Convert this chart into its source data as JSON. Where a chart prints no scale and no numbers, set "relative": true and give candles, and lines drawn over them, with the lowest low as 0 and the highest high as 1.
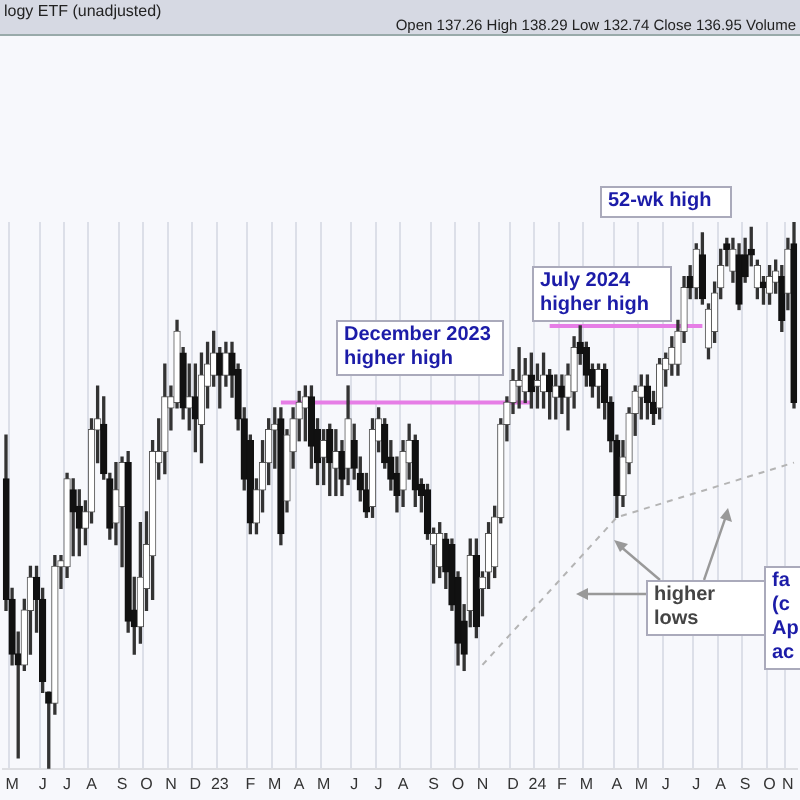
{
  "chart_data": {
    "type": "candlestick",
    "relative": true,
    "title": "logy ETF (unadjusted)",
    "grid": "x",
    "categories": [
      null,
      "M",
      null,
      null,
      null,
      null,
      "J",
      null,
      null,
      null,
      "J",
      null,
      null,
      null,
      "A",
      null,
      null,
      null,
      null,
      "S",
      null,
      null,
      null,
      "O",
      null,
      null,
      null,
      "N",
      null,
      null,
      null,
      "D",
      null,
      null,
      null,
      "23",
      null,
      null,
      null,
      null,
      "F",
      null,
      null,
      null,
      "M",
      null,
      null,
      null,
      "A",
      null,
      null,
      null,
      "M",
      null,
      null,
      null,
      null,
      "J",
      null,
      null,
      null,
      "J",
      null,
      null,
      null,
      "A",
      null,
      null,
      null,
      null,
      "S",
      null,
      null,
      null,
      "O",
      null,
      null,
      null,
      "N",
      null,
      null,
      null,
      null,
      "D",
      null,
      null,
      null,
      "24",
      null,
      null,
      null,
      "F",
      null,
      null,
      null,
      "M",
      null,
      null,
      null,
      null,
      "A",
      null,
      null,
      null,
      "M",
      null,
      null,
      null,
      "J",
      null,
      null,
      null,
      null,
      "J",
      null,
      null,
      null,
      "A",
      null,
      null,
      null,
      "S",
      null,
      null,
      null,
      "O",
      null,
      null,
      "N",
      null
    ],
    "ohlc": [
      [
        0.53,
        0.61,
        0.29,
        0.31
      ],
      [
        0.31,
        0.33,
        0.19,
        0.21
      ],
      [
        0.21,
        0.25,
        0.02,
        0.19
      ],
      [
        0.19,
        0.31,
        0.18,
        0.29
      ],
      [
        0.29,
        0.37,
        0.21,
        0.35
      ],
      [
        0.35,
        0.37,
        0.25,
        0.31
      ],
      [
        0.31,
        0.33,
        0.14,
        0.16
      ],
      [
        0.14,
        0.14,
        0,
        0.12
      ],
      [
        0.12,
        0.39,
        0.1,
        0.37
      ],
      [
        0.37,
        0.39,
        0.33,
        0.38
      ],
      [
        0.37,
        0.54,
        0.35,
        0.53
      ],
      [
        0.51,
        0.53,
        0.39,
        0.47
      ],
      [
        0.48,
        0.51,
        0.39,
        0.44
      ],
      [
        0.44,
        0.49,
        0.41,
        0.47
      ],
      [
        0.47,
        0.64,
        0.45,
        0.62
      ],
      [
        0.62,
        0.7,
        0.56,
        0.64
      ],
      [
        0.63,
        0.68,
        0.53,
        0.54
      ],
      [
        0.53,
        0.54,
        0.42,
        0.44
      ],
      [
        0.45,
        0.56,
        0.41,
        0.51
      ],
      [
        0.48,
        0.57,
        0.37,
        0.56
      ],
      [
        0.56,
        0.58,
        0.25,
        0.27
      ],
      [
        0.29,
        0.35,
        0.21,
        0.26
      ],
      [
        0.26,
        0.45,
        0.23,
        0.35
      ],
      [
        0.33,
        0.47,
        0.29,
        0.41
      ],
      [
        0.39,
        0.6,
        0.31,
        0.58
      ],
      [
        0.56,
        0.64,
        0.53,
        0.58
      ],
      [
        0.58,
        0.74,
        0.54,
        0.68
      ],
      [
        0.66,
        0.7,
        0.62,
        0.68
      ],
      [
        0.67,
        0.82,
        0.66,
        0.8
      ],
      [
        0.76,
        0.77,
        0.64,
        0.66
      ],
      [
        0.66,
        0.74,
        0.62,
        0.68
      ],
      [
        0.68,
        0.74,
        0.58,
        0.64
      ],
      [
        0.63,
        0.76,
        0.56,
        0.72
      ],
      [
        0.7,
        0.78,
        0.66,
        0.74
      ],
      [
        0.72,
        0.8,
        0.7,
        0.76
      ],
      [
        0.76,
        0.77,
        0.66,
        0.72
      ],
      [
        0.72,
        0.78,
        0.7,
        0.76
      ],
      [
        0.76,
        0.78,
        0.68,
        0.72
      ],
      [
        0.73,
        0.74,
        0.62,
        0.64
      ],
      [
        0.64,
        0.66,
        0.51,
        0.53
      ],
      [
        0.6,
        0.61,
        0.43,
        0.45
      ],
      [
        0.45,
        0.53,
        0.43,
        0.51
      ],
      [
        0.51,
        0.6,
        0.47,
        0.56
      ],
      [
        0.56,
        0.64,
        0.52,
        0.62
      ],
      [
        0.62,
        0.66,
        0.55,
        0.63
      ],
      [
        0.64,
        0.66,
        0.41,
        0.43
      ],
      [
        0.49,
        0.62,
        0.47,
        0.61
      ],
      [
        0.58,
        0.66,
        0.55,
        0.64
      ],
      [
        0.64,
        0.69,
        0.6,
        0.67
      ],
      [
        0.66,
        0.7,
        0.6,
        0.68
      ],
      [
        0.68,
        0.7,
        0.55,
        0.59
      ],
      [
        0.62,
        0.64,
        0.52,
        0.56
      ],
      [
        0.57,
        0.62,
        0.52,
        0.6
      ],
      [
        0.62,
        0.63,
        0.5,
        0.56
      ],
      [
        0.55,
        0.62,
        0.5,
        0.58
      ],
      [
        0.58,
        0.6,
        0.5,
        0.53
      ],
      [
        0.55,
        0.7,
        0.52,
        0.64
      ],
      [
        0.6,
        0.63,
        0.53,
        0.55
      ],
      [
        0.54,
        0.57,
        0.49,
        0.51
      ],
      [
        0.51,
        0.54,
        0.46,
        0.47
      ],
      [
        0.48,
        0.64,
        0.46,
        0.62
      ],
      [
        0.6,
        0.66,
        0.58,
        0.64
      ],
      [
        0.63,
        0.64,
        0.55,
        0.56
      ],
      [
        0.57,
        0.6,
        0.51,
        0.53
      ],
      [
        0.54,
        0.57,
        0.47,
        0.5
      ],
      [
        0.51,
        0.6,
        0.48,
        0.58
      ],
      [
        0.56,
        0.63,
        0.53,
        0.6
      ],
      [
        0.6,
        0.61,
        0.48,
        0.51
      ],
      [
        0.52,
        0.53,
        0.47,
        0.5
      ],
      [
        0.51,
        0.52,
        0.42,
        0.43
      ],
      [
        0.41,
        0.44,
        0.34,
        0.43
      ],
      [
        0.37,
        0.45,
        0.35,
        0.43
      ],
      [
        0.42,
        0.43,
        0.33,
        0.36
      ],
      [
        0.41,
        0.42,
        0.29,
        0.3
      ],
      [
        0.35,
        0.36,
        0.19,
        0.23
      ],
      [
        0.27,
        0.3,
        0.18,
        0.21
      ],
      [
        0.29,
        0.42,
        0.26,
        0.39
      ],
      [
        0.39,
        0.42,
        0.24,
        0.26
      ],
      [
        0.33,
        0.36,
        0.28,
        0.35
      ],
      [
        0.36,
        0.45,
        0.33,
        0.43
      ],
      [
        0.37,
        0.48,
        0.35,
        0.46
      ],
      [
        0.46,
        0.64,
        0.45,
        0.63
      ],
      [
        0.63,
        0.68,
        0.6,
        0.67
      ],
      [
        0.67,
        0.73,
        0.65,
        0.71
      ],
      [
        0.7,
        0.77,
        0.66,
        0.71
      ],
      [
        0.69,
        0.75,
        0.67,
        0.72
      ],
      [
        0.72,
        0.76,
        0.66,
        0.69
      ],
      [
        0.7,
        0.74,
        0.66,
        0.71
      ],
      [
        0.69,
        0.76,
        0.66,
        0.72
      ],
      [
        0.72,
        0.73,
        0.64,
        0.69
      ],
      [
        0.68,
        0.72,
        0.64,
        0.7
      ],
      [
        0.7,
        0.72,
        0.65,
        0.68
      ],
      [
        0.68,
        0.74,
        0.62,
        0.72
      ],
      [
        0.69,
        0.79,
        0.66,
        0.77
      ],
      [
        0.78,
        0.81,
        0.74,
        0.76
      ],
      [
        0.77,
        0.78,
        0.7,
        0.72
      ],
      [
        0.73,
        0.74,
        0.68,
        0.7
      ],
      [
        0.7,
        0.74,
        0.66,
        0.73
      ],
      [
        0.73,
        0.74,
        0.64,
        0.67
      ],
      [
        0.67,
        0.68,
        0.58,
        0.6
      ],
      [
        0.6,
        0.61,
        0.46,
        0.5
      ],
      [
        0.5,
        0.6,
        0.48,
        0.57
      ],
      [
        0.56,
        0.66,
        0.54,
        0.65
      ],
      [
        0.65,
        0.7,
        0.61,
        0.69
      ],
      [
        0.68,
        0.72,
        0.64,
        0.7
      ],
      [
        0.7,
        0.72,
        0.64,
        0.67
      ],
      [
        0.67,
        0.69,
        0.63,
        0.65
      ],
      [
        0.66,
        0.75,
        0.64,
        0.74
      ],
      [
        0.73,
        0.76,
        0.7,
        0.75
      ],
      [
        0.74,
        0.79,
        0.72,
        0.77
      ],
      [
        0.74,
        0.82,
        0.72,
        0.8
      ],
      [
        0.8,
        0.9,
        0.78,
        0.88
      ],
      [
        0.9,
        0.92,
        0.86,
        0.88
      ],
      [
        0.88,
        0.96,
        0.86,
        0.95
      ],
      [
        0.94,
        0.98,
        0.85,
        0.86
      ],
      [
        0.77,
        0.85,
        0.75,
        0.84
      ],
      [
        0.8,
        0.89,
        0.78,
        0.87
      ],
      [
        0.88,
        0.95,
        0.86,
        0.92
      ],
      [
        0.96,
        0.97,
        0.92,
        0.95
      ],
      [
        0.91,
        0.97,
        0.89,
        0.95
      ],
      [
        0.94,
        0.96,
        0.84,
        0.85
      ],
      [
        0.94,
        0.97,
        0.89,
        0.9
      ],
      [
        0.95,
        0.99,
        0.92,
        0.94
      ],
      [
        0.88,
        0.93,
        0.86,
        0.92
      ],
      [
        0.89,
        0.9,
        0.85,
        0.88
      ],
      [
        0.87,
        0.92,
        0.85,
        0.9
      ],
      [
        0.89,
        0.93,
        0.87,
        0.91
      ],
      [
        0.9,
        0.92,
        0.8,
        0.82
      ],
      [
        0.87,
        0.97,
        0.84,
        0.95
      ],
      [
        0.96,
        1,
        0.66,
        0.67
      ]
    ],
    "series": [
      {
        "type": "line",
        "color": "#e67ee6",
        "line_style": "solid",
        "values": [
          null,
          null,
          null,
          null,
          null,
          null,
          null,
          null,
          null,
          null,
          null,
          null,
          null,
          null,
          null,
          null,
          null,
          null,
          null,
          null,
          null,
          null,
          null,
          null,
          null,
          null,
          null,
          null,
          null,
          null,
          null,
          null,
          null,
          null,
          null,
          null,
          null,
          null,
          null,
          null,
          null,
          null,
          null,
          null,
          null,
          0.67,
          null,
          null,
          null,
          null,
          null,
          null,
          null,
          null,
          null,
          null,
          null,
          null,
          null,
          null,
          null,
          null,
          null,
          null,
          null,
          null,
          null,
          null,
          null,
          null,
          null,
          null,
          null,
          null,
          null,
          null,
          null,
          null,
          null,
          null,
          null,
          null,
          null,
          null,
          null,
          null,
          0.67,
          null,
          null,
          null,
          null,
          null,
          null,
          null,
          null,
          null,
          null,
          null,
          null,
          null,
          null,
          null,
          null,
          null,
          null,
          null,
          null,
          null,
          null,
          null,
          null,
          null,
          null,
          null,
          null,
          null,
          null,
          null,
          null,
          null,
          null,
          null,
          null,
          null,
          null,
          null,
          null,
          null,
          null,
          null
        ]
      },
      {
        "type": "line",
        "color": "#e67ee6",
        "line_style": "solid",
        "values": [
          null,
          null,
          null,
          null,
          null,
          null,
          null,
          null,
          null,
          null,
          null,
          null,
          null,
          null,
          null,
          null,
          null,
          null,
          null,
          null,
          null,
          null,
          null,
          null,
          null,
          null,
          null,
          null,
          null,
          null,
          null,
          null,
          null,
          null,
          null,
          null,
          null,
          null,
          null,
          null,
          null,
          null,
          null,
          null,
          null,
          null,
          null,
          null,
          null,
          null,
          null,
          null,
          null,
          null,
          null,
          null,
          null,
          null,
          null,
          null,
          null,
          null,
          null,
          null,
          null,
          null,
          null,
          null,
          null,
          null,
          null,
          null,
          null,
          null,
          null,
          null,
          null,
          null,
          null,
          null,
          null,
          null,
          null,
          null,
          null,
          null,
          null,
          null,
          null,
          0.81,
          null,
          null,
          null,
          null,
          null,
          null,
          null,
          null,
          null,
          null,
          null,
          null,
          null,
          null,
          null,
          null,
          null,
          null,
          null,
          null,
          null,
          null,
          null,
          null,
          0.81,
          null,
          null,
          null,
          null,
          null,
          null,
          null,
          null,
          null,
          null,
          null,
          null,
          null,
          null,
          null
        ]
      },
      {
        "type": "line",
        "color": "#b4b4b4",
        "line_style": "dashed",
        "values": [
          null,
          null,
          null,
          null,
          null,
          null,
          null,
          null,
          null,
          null,
          null,
          null,
          null,
          null,
          null,
          null,
          null,
          null,
          null,
          null,
          null,
          null,
          null,
          null,
          null,
          null,
          null,
          null,
          null,
          null,
          null,
          null,
          null,
          null,
          null,
          null,
          null,
          null,
          null,
          null,
          null,
          null,
          null,
          null,
          null,
          null,
          null,
          null,
          null,
          null,
          null,
          null,
          null,
          null,
          null,
          null,
          null,
          null,
          null,
          null,
          null,
          null,
          null,
          null,
          null,
          null,
          null,
          null,
          null,
          null,
          null,
          null,
          null,
          null,
          null,
          null,
          null,
          null,
          0.19,
          null,
          null,
          null,
          null,
          null,
          null,
          null,
          null,
          null,
          null,
          null,
          null,
          null,
          null,
          null,
          null,
          null,
          null,
          null,
          null,
          null,
          0.46,
          null,
          null,
          null,
          null,
          null,
          null,
          null,
          null,
          null,
          null,
          null,
          null,
          null,
          null,
          null,
          null,
          null,
          null,
          null,
          null,
          null,
          null,
          null,
          null,
          null,
          null,
          null,
          null,
          0.56
        ]
      }
    ],
    "annotations": [
      "Open 137.26 High 138.29 Low 132.74 Close 136.95 Volume",
      "December 2023 higher high",
      "July 2024 higher high",
      "52-wk high",
      "higher lows",
      "fa (c Ap ac"
    ]
  }
}
